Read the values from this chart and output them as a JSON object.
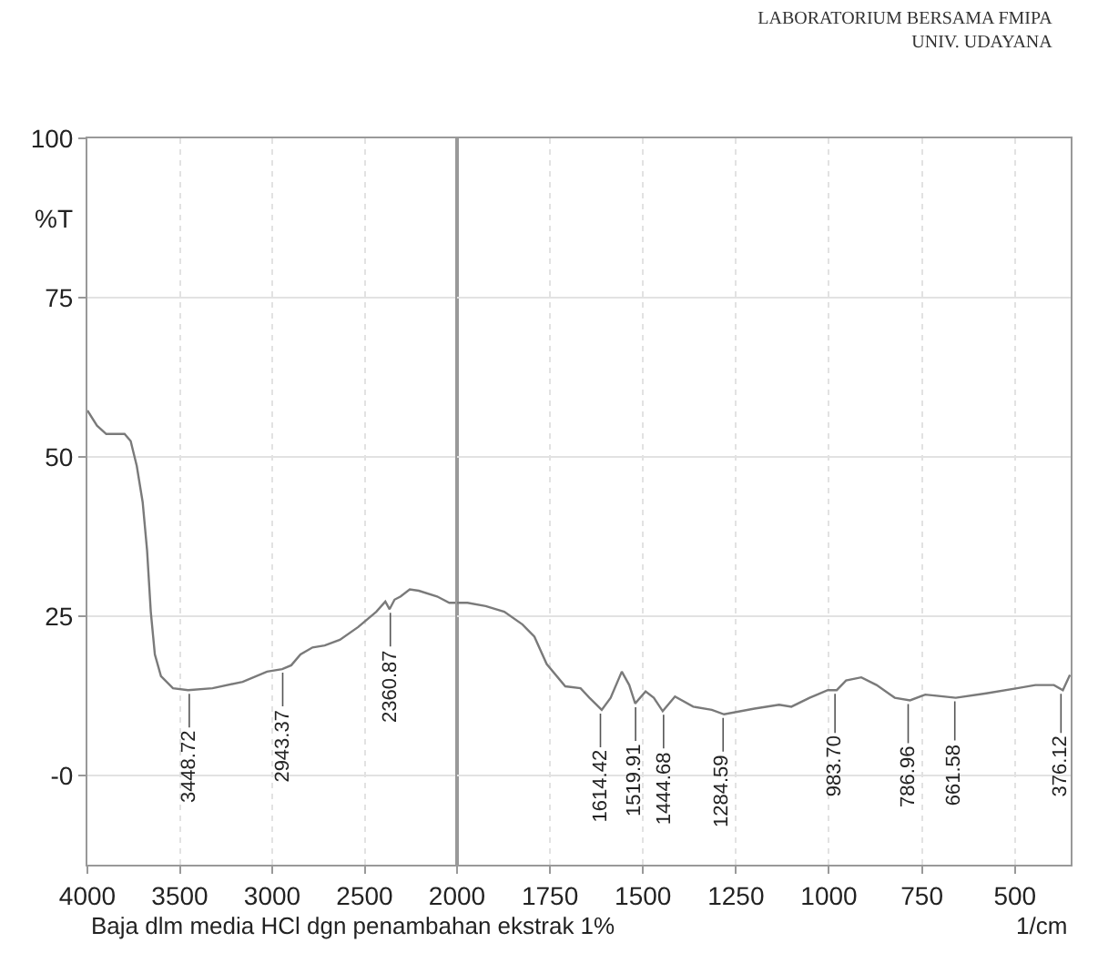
{
  "chart_data": [
    {
      "type": "line",
      "xlabel": "Baja dlm media HCl dgn penambahan ekstrak 1%",
      "ylabel": "%T",
      "annotations": [
        {
          "text": "3448.72",
          "x": 3448.72,
          "y": 13.4
        },
        {
          "text": "2943.37",
          "x": 2943.37,
          "y": 16.7
        },
        {
          "text": "2360.87",
          "x": 2360.87,
          "y": 26.1
        }
      ],
      "x": [
        4000,
        3948,
        3898,
        3799,
        3766,
        3733,
        3701,
        3677,
        3657,
        3635,
        3602,
        3537,
        3455,
        3323,
        3160,
        3028,
        2946,
        2897,
        2847,
        2782,
        2716,
        2634,
        2535,
        2437,
        2388,
        2365,
        2338,
        2305,
        2256,
        2207,
        2108,
        2042,
        2000
      ],
      "series": [
        {
          "color": "#7a7a7a",
          "values": [
            57.3,
            54.9,
            53.6,
            53.6,
            52.5,
            48.6,
            42.9,
            35.3,
            25.7,
            19,
            15.6,
            13.7,
            13.4,
            13.7,
            14.7,
            16.3,
            16.7,
            17.3,
            19,
            20.1,
            20.4,
            21.3,
            23.3,
            25.7,
            27.3,
            26.1,
            27.6,
            28.1,
            29.2,
            29,
            28.1,
            27.1,
            27.1
          ]
        }
      ],
      "xlim": [
        4000,
        2000
      ],
      "xticks": [
        4000,
        3500,
        3000,
        2500,
        2000
      ],
      "ylim": [
        -14,
        100
      ],
      "yticks": [
        100,
        75,
        50,
        25,
        {
          "value": 0,
          "label": "-0"
        }
      ],
      "grid": true,
      "marker": "none",
      "line_style": "solid"
    },
    {
      "type": "line",
      "title": "LABORATORIUM BERSAMA FMIPA\nUNIV. UDAYANA",
      "annotations": [
        {
          "text": "1614.42",
          "x": 1614.42,
          "y": 10.3
        },
        {
          "text": "1519.91",
          "x": 1519.91,
          "y": 11.3
        },
        {
          "text": "1444.68",
          "x": 1444.68,
          "y": 10.1
        },
        {
          "text": "1284.59",
          "x": 1284.59,
          "y": 9.6
        },
        {
          "text": "983.70",
          "x": 983.7,
          "y": 13.4
        },
        {
          "text": "786.96",
          "x": 786.96,
          "y": 11.8
        },
        {
          "text": "661.58",
          "x": 661.58,
          "y": 12.2
        },
        {
          "text": "376.12",
          "x": 376.12,
          "y": 13.4
        },
        "1/cm"
      ],
      "x": [
        2000,
        1972,
        1923,
        1873,
        1824,
        1792,
        1759,
        1709,
        1668,
        1644,
        1611,
        1587,
        1557,
        1537,
        1521,
        1493,
        1471,
        1447,
        1414,
        1365,
        1315,
        1282,
        1200,
        1134,
        1101,
        1052,
        1003,
        979,
        954,
        913,
        872,
        823,
        782,
        741,
        659,
        577,
        494,
        445,
        395,
        371,
        352
      ],
      "series": [
        {
          "color": "#7a7a7a",
          "values": [
            27.1,
            27.1,
            26.6,
            25.7,
            23.7,
            21.8,
            17.5,
            14,
            13.7,
            12.2,
            10.3,
            12.2,
            16.3,
            14.2,
            11.3,
            13.2,
            12.2,
            10.1,
            12.4,
            10.8,
            10.3,
            9.6,
            10.5,
            11.1,
            10.8,
            12.2,
            13.4,
            13.4,
            14.9,
            15.4,
            14.2,
            12.2,
            11.8,
            12.7,
            12.2,
            12.9,
            13.7,
            14.2,
            14.2,
            13.4,
            15.8
          ]
        }
      ],
      "xlim": [
        2000,
        350
      ],
      "xticks": [
        {
          "value": 2000,
          "label": null
        },
        1750,
        1500,
        1250,
        1000,
        750,
        500
      ],
      "ylim": [
        -14,
        100
      ],
      "yticks": [
        100,
        75,
        50,
        25,
        0
      ],
      "tick_labels": "x",
      "grid": true,
      "marker": "none",
      "line_style": "solid"
    }
  ]
}
